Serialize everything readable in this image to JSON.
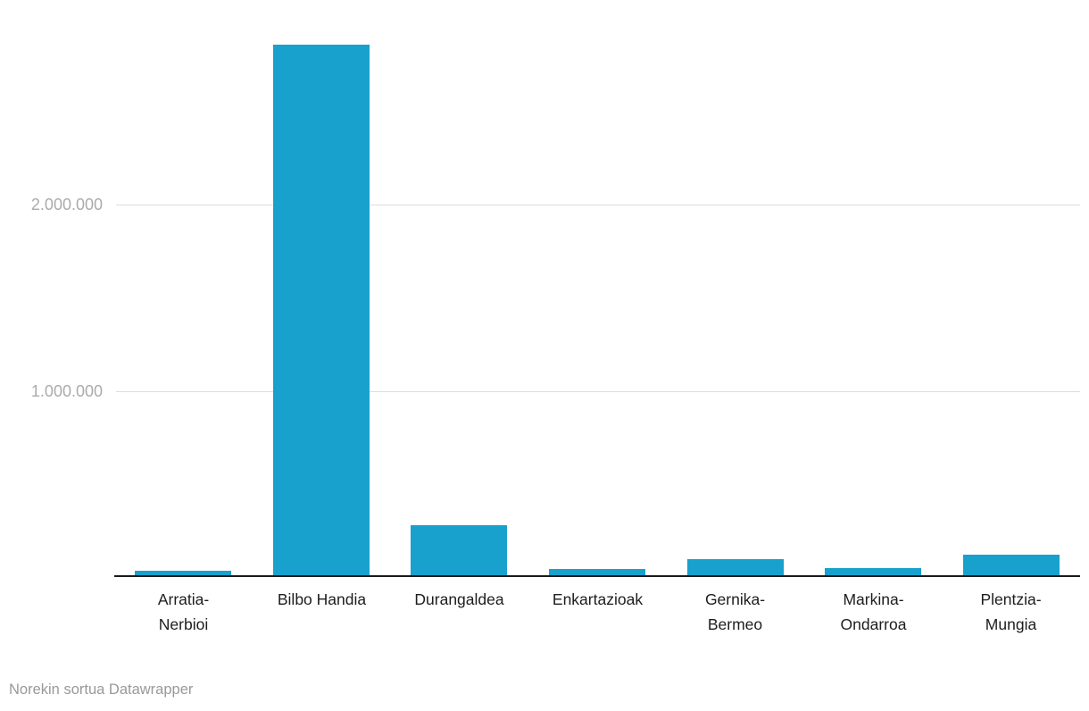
{
  "chart_data": {
    "type": "bar",
    "title": "",
    "xlabel": "",
    "ylabel": "",
    "categories": [
      "Arratia-Nerbioi",
      "Bilbo Handia",
      "Durangaldea",
      "Enkartazioak",
      "Gernika-Bermeo",
      "Markina-Ondarroa",
      "Plentzia-Mungia"
    ],
    "category_label_lines": [
      [
        "Arratia-",
        "Nerbioi"
      ],
      [
        "Bilbo Handia"
      ],
      [
        "Durangaldea"
      ],
      [
        "Enkartazioak"
      ],
      [
        "Gernika-",
        "Bermeo"
      ],
      [
        "Markina-",
        "Ondarroa"
      ],
      [
        "Plentzia-",
        "Mungia"
      ]
    ],
    "values": [
      33000,
      2860000,
      280000,
      42000,
      98000,
      46000,
      122000
    ],
    "ylim": [
      0,
      3100000
    ],
    "yticks": [
      {
        "value": 2000000,
        "label": "2.000.000"
      },
      {
        "value": 1000000,
        "label": "1.000.000"
      }
    ],
    "grid": "horizontal",
    "legend": "none"
  },
  "footer": {
    "attribution_prefix": "Norekin sortua",
    "attribution_link": "Datawrapper"
  },
  "colors": {
    "bar": "#18a1cd",
    "gridline": "#dedede",
    "axis_line": "#1a1a1a",
    "tick_label": "#ababab",
    "category_label": "#1d1d1d",
    "footer_text": "#999999",
    "background": "#ffffff"
  }
}
